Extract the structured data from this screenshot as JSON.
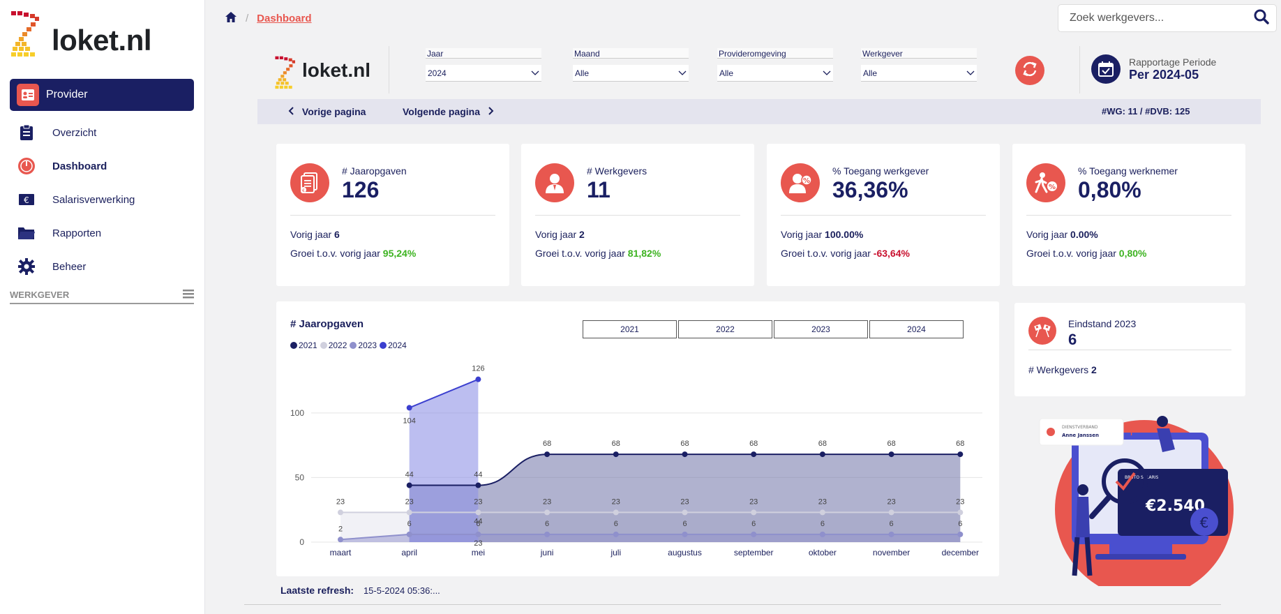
{
  "sidebar": {
    "logo_text": "loket.nl",
    "provider_label": "Provider",
    "items": [
      {
        "label": "Overzicht",
        "icon": "clipboard-icon"
      },
      {
        "label": "Dashboard",
        "icon": "gauge-icon"
      },
      {
        "label": "Salarisverwerking",
        "icon": "euro-icon"
      },
      {
        "label": "Rapporten",
        "icon": "folder-icon"
      },
      {
        "label": "Beheer",
        "icon": "gear-icon"
      }
    ],
    "section_label": "WERKGEVER"
  },
  "breadcrumb": {
    "current": "Dashboard"
  },
  "search": {
    "placeholder": "Zoek werkgevers..."
  },
  "filters": {
    "logo_text": "loket.nl",
    "jaar": {
      "label": "Jaar",
      "value": "2024"
    },
    "maand": {
      "label": "Maand",
      "value": "Alle"
    },
    "provideromgeving": {
      "label": "Provideromgeving",
      "value": "Alle"
    },
    "werkgever": {
      "label": "Werkgever",
      "value": "Alle"
    }
  },
  "rapportage": {
    "label": "Rapportage Periode",
    "value": "Per 2024-05"
  },
  "pager": {
    "prev": "Vorige pagina",
    "next": "Volgende pagina",
    "stats": "#WG: 11 / #DVB: 125"
  },
  "kpis": [
    {
      "title": "# Jaaropgaven",
      "value": "126",
      "prev_label": "Vorig jaar",
      "prev_value": "6",
      "growth_label": "Groei t.o.v. vorig jaar",
      "growth_value": "95,24%",
      "growth_color": "green"
    },
    {
      "title": "# Werkgevers",
      "value": "11",
      "prev_label": "Vorig jaar",
      "prev_value": "2",
      "growth_label": "Groei t.o.v. vorig jaar",
      "growth_value": "81,82%",
      "growth_color": "green"
    },
    {
      "title": "% Toegang werkgever",
      "value": "36,36%",
      "prev_label": "Vorig jaar",
      "prev_value": "100.00%",
      "growth_label": "Groei t.o.v. vorig jaar",
      "growth_value": "-63,64%",
      "growth_color": "red"
    },
    {
      "title": "% Toegang werknemer",
      "value": "0,80%",
      "prev_label": "Vorig jaar",
      "prev_value": "0.00%",
      "growth_label": "Groei t.o.v. vorig jaar",
      "growth_value": "0,80%",
      "growth_color": "green"
    }
  ],
  "year_buttons": [
    "2021",
    "2022",
    "2023",
    "2024"
  ],
  "eindstand": {
    "title": "Eindstand 2023",
    "value": "6",
    "werkgevers_label": "# Werkgevers",
    "werkgevers_value": "2"
  },
  "illustration": {
    "card_label": "DIENSTVERBAND",
    "card_name": "Anne Janssen",
    "bruto_label": "BRUTO SALARIS",
    "amount": "€2.540"
  },
  "refresh": {
    "label": "Laatste refresh:",
    "value": "15-5-2024 05:36:..."
  },
  "chart_data": {
    "type": "area",
    "title": "# Jaaropgaven",
    "categories": [
      "maart",
      "april",
      "mei",
      "juni",
      "juli",
      "augustus",
      "september",
      "oktober",
      "november",
      "december"
    ],
    "yticks": [
      0,
      50,
      100
    ],
    "ylim": [
      0,
      135
    ],
    "legend_position": "top-left",
    "series": [
      {
        "name": "2021",
        "color": "#1a1f63",
        "values": [
          null,
          44,
          44,
          68,
          68,
          68,
          68,
          68,
          68,
          68
        ]
      },
      {
        "name": "2022",
        "color": "#d0d0de",
        "values": [
          23,
          23,
          23,
          23,
          23,
          23,
          23,
          23,
          23,
          23
        ]
      },
      {
        "name": "2023",
        "color": "#8f90cc",
        "values": [
          2,
          6,
          6,
          6,
          6,
          6,
          6,
          6,
          6,
          6
        ]
      },
      {
        "name": "2024",
        "color": "#3b3fcf",
        "values": [
          null,
          104,
          126,
          null,
          null,
          null,
          null,
          null,
          null,
          null
        ]
      }
    ],
    "extra_labels": [
      {
        "index": 2,
        "series": "2022",
        "text": "44"
      },
      {
        "index": 2,
        "series": "2023",
        "text": "23"
      }
    ]
  }
}
